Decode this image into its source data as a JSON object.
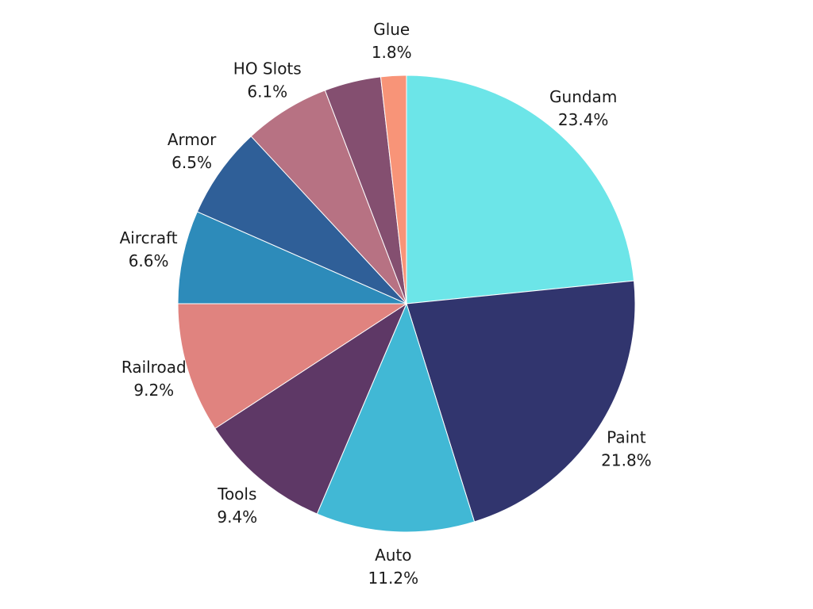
{
  "chart_data": {
    "type": "pie",
    "title": "",
    "categories": [
      "Gundam",
      "Paint",
      "Auto",
      "Tools",
      "Railroad",
      "Aircraft",
      "Armor",
      "HO Slots",
      "",
      "Glue"
    ],
    "values": [
      23.4,
      21.8,
      11.2,
      9.4,
      9.2,
      6.6,
      6.5,
      6.1,
      4.0,
      1.8
    ],
    "value_labels": [
      "23.4%",
      "21.8%",
      "11.2%",
      "9.4%",
      "9.2%",
      "6.6%",
      "6.5%",
      "6.1%",
      "",
      "1.8%"
    ],
    "colors": [
      "#6ce5e8",
      "#31356e",
      "#41b8d5",
      "#5e3866",
      "#e0837f",
      "#2d8bba",
      "#2f5f98",
      "#b77283",
      "#844f70",
      "#f89478"
    ],
    "start_angle_deg": 0,
    "direction": "clockwise",
    "legend": "none"
  }
}
